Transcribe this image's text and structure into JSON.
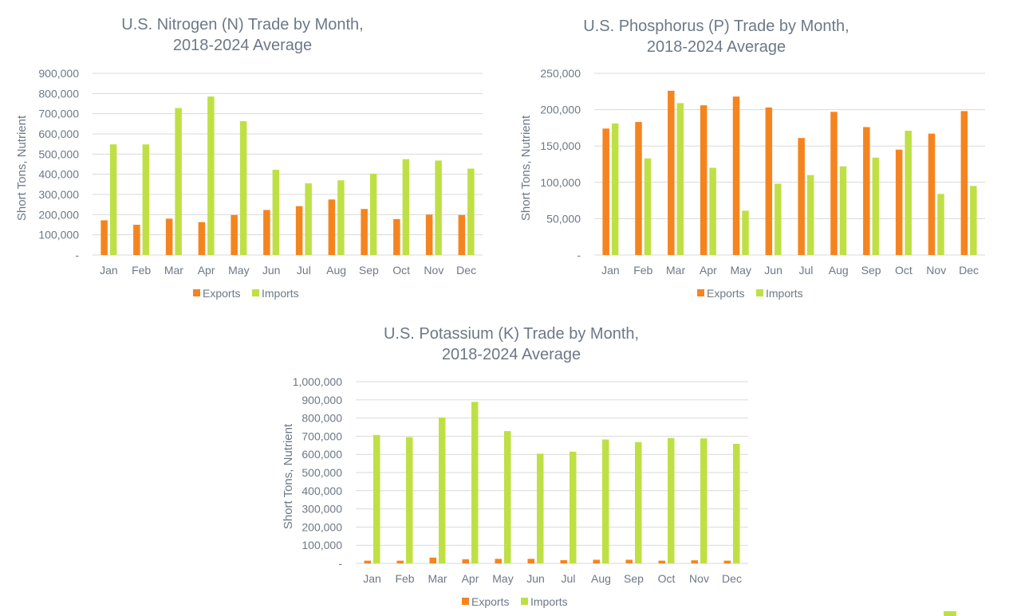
{
  "colors": {
    "exports": "#f5841f",
    "imports": "#bfe045",
    "text": "#6d7887",
    "grid": "#d9d9d9"
  },
  "chart_data": [
    {
      "type": "bar",
      "title": [
        "U.S. Nitrogen (N) Trade by Month,",
        "2018-2024 Average"
      ],
      "ylabel": "Short Tons, Nutrient",
      "xlabel": "",
      "ylim": [
        0,
        900000
      ],
      "yticks": [
        0,
        100000,
        200000,
        300000,
        400000,
        500000,
        600000,
        700000,
        800000,
        900000
      ],
      "ytick_labels": [
        "-",
        "100,000",
        "200,000",
        "300,000",
        "400,000",
        "500,000",
        "600,000",
        "700,000",
        "800,000",
        "900,000"
      ],
      "grid": true,
      "legend": "bottom",
      "categories": [
        "Jan",
        "Feb",
        "Mar",
        "Apr",
        "May",
        "Jun",
        "Jul",
        "Aug",
        "Sep",
        "Oct",
        "Nov",
        "Dec"
      ],
      "series": [
        {
          "name": "Exports",
          "values": [
            172000,
            150000,
            180000,
            163000,
            198000,
            223000,
            242000,
            275000,
            228000,
            178000,
            200000,
            198000
          ]
        },
        {
          "name": "Imports",
          "values": [
            548000,
            548000,
            728000,
            785000,
            663000,
            422000,
            355000,
            370000,
            403000,
            475000,
            468000,
            428000
          ]
        }
      ]
    },
    {
      "type": "bar",
      "title": [
        "U.S. Phosphorus (P) Trade by Month,",
        "2018-2024 Average"
      ],
      "ylabel": "Short Tons, Nutrient",
      "xlabel": "",
      "ylim": [
        0,
        250000
      ],
      "yticks": [
        0,
        50000,
        100000,
        150000,
        200000,
        250000
      ],
      "ytick_labels": [
        "-",
        "50,000",
        "100,000",
        "150,000",
        "200,000",
        "250,000"
      ],
      "grid": true,
      "legend": "bottom",
      "categories": [
        "Jan",
        "Feb",
        "Mar",
        "Apr",
        "May",
        "Jun",
        "Jul",
        "Aug",
        "Sep",
        "Oct",
        "Nov",
        "Dec"
      ],
      "series": [
        {
          "name": "Exports",
          "values": [
            174000,
            183000,
            226000,
            206000,
            218000,
            203000,
            161000,
            197000,
            176000,
            145000,
            167000,
            198000
          ]
        },
        {
          "name": "Imports",
          "values": [
            181000,
            133000,
            209000,
            120000,
            61000,
            98000,
            110000,
            122000,
            134000,
            171000,
            84000,
            95000
          ]
        }
      ]
    },
    {
      "type": "bar",
      "title": [
        "U.S. Potassium (K) Trade by Month,",
        "2018-2024 Average"
      ],
      "ylabel": "Short Tons, Nutrient",
      "xlabel": "",
      "ylim": [
        0,
        1000000
      ],
      "yticks": [
        0,
        100000,
        200000,
        300000,
        400000,
        500000,
        600000,
        700000,
        800000,
        900000,
        1000000
      ],
      "ytick_labels": [
        "-",
        "100,000",
        "200,000",
        "300,000",
        "400,000",
        "500,000",
        "600,000",
        "700,000",
        "800,000",
        "900,000",
        "1,000,000"
      ],
      "grid": true,
      "legend": "bottom",
      "categories": [
        "Jan",
        "Feb",
        "Mar",
        "Apr",
        "May",
        "Jun",
        "Jul",
        "Aug",
        "Sep",
        "Oct",
        "Nov",
        "Dec"
      ],
      "series": [
        {
          "name": "Exports",
          "values": [
            15000,
            15000,
            32000,
            23000,
            25000,
            25000,
            18000,
            20000,
            20000,
            15000,
            17000,
            15000
          ]
        },
        {
          "name": "Imports",
          "values": [
            707000,
            695000,
            803000,
            889000,
            728000,
            604000,
            615000,
            682000,
            668000,
            690000,
            688000,
            658000
          ]
        }
      ]
    }
  ]
}
